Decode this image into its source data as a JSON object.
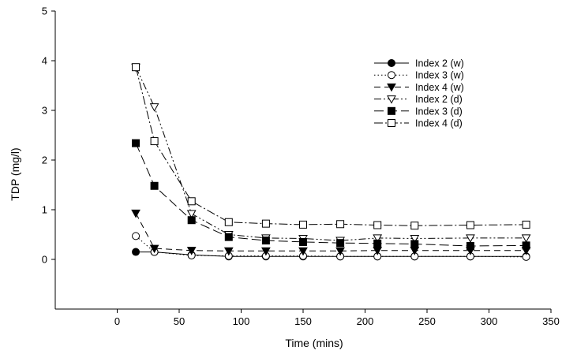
{
  "chart_data": {
    "type": "line",
    "title": "",
    "xlabel": "Time (mins)",
    "ylabel": "TDP (mg/l)",
    "xlim": [
      -50,
      350
    ],
    "ylim": [
      -1,
      5
    ],
    "x_ticks": [
      "0",
      "50",
      "100",
      "150",
      "200",
      "250",
      "300",
      "350"
    ],
    "y_ticks": [
      "0",
      "1",
      "2",
      "3",
      "4",
      "5"
    ],
    "grid": false,
    "legend_position": "top-right",
    "x": [
      15,
      30,
      60,
      90,
      120,
      150,
      180,
      210,
      240,
      285,
      330
    ],
    "series": [
      {
        "name": "Index 2 (w)",
        "marker": "filled-circle",
        "line_style": "solid",
        "values": [
          0.15,
          0.15,
          0.09,
          0.06,
          0.06,
          0.06,
          0.06,
          0.06,
          0.06,
          0.06,
          0.06
        ]
      },
      {
        "name": "Index 3 (w)",
        "marker": "open-circle",
        "line_style": "dotted",
        "values": [
          0.47,
          0.15,
          0.08,
          0.07,
          0.07,
          0.07,
          0.06,
          0.06,
          0.06,
          0.06,
          0.05
        ]
      },
      {
        "name": "Index 4 (w)",
        "marker": "filled-triangle-down",
        "line_style": "dash",
        "values": [
          0.93,
          0.22,
          0.18,
          0.17,
          0.17,
          0.17,
          0.17,
          0.18,
          0.18,
          0.18,
          0.18
        ]
      },
      {
        "name": "Index 2 (d)",
        "marker": "open-triangle-down",
        "line_style": "dash-dot-dot",
        "values": [
          3.87,
          3.07,
          0.92,
          0.5,
          0.43,
          0.42,
          0.38,
          0.43,
          0.42,
          0.43,
          0.43
        ]
      },
      {
        "name": "Index 3 (d)",
        "marker": "filled-square",
        "line_style": "long-dash",
        "values": [
          2.34,
          1.48,
          0.79,
          0.45,
          0.38,
          0.35,
          0.33,
          0.32,
          0.31,
          0.27,
          0.28
        ]
      },
      {
        "name": "Index 4 (d)",
        "marker": "open-square",
        "line_style": "dash-dot",
        "values": [
          3.87,
          2.38,
          1.17,
          0.75,
          0.72,
          0.7,
          0.71,
          0.69,
          0.68,
          0.69,
          0.7
        ]
      }
    ]
  }
}
